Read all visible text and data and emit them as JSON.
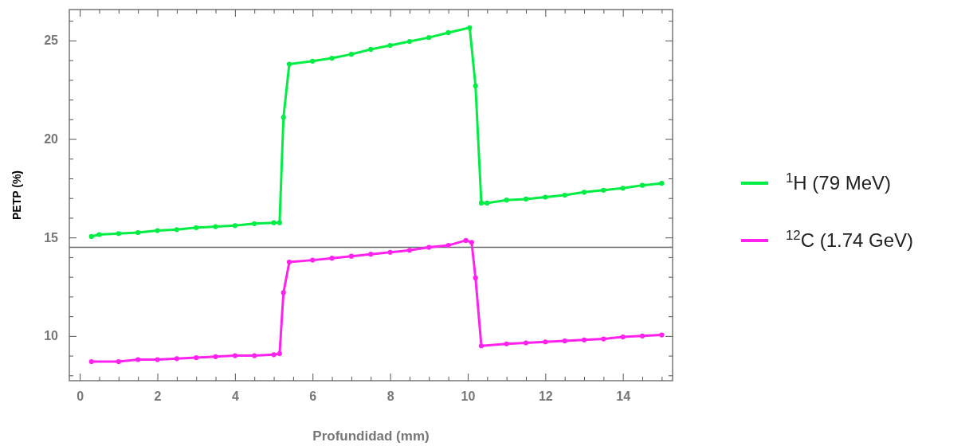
{
  "chart_data": {
    "type": "line",
    "xlabel": "Profundidad (mm)",
    "ylabel": "PETP (%)",
    "xlim": [
      -0.27,
      15.28
    ],
    "ylim": [
      7.73,
      26.57
    ],
    "xticks": [
      0,
      {
        "value": 0.5,
        "label": null
      },
      {
        "value": 1,
        "label": null
      },
      {
        "value": 1.5,
        "label": null
      },
      2,
      {
        "value": 2.5,
        "label": null
      },
      {
        "value": 3,
        "label": null
      },
      {
        "value": 3.5,
        "label": null
      },
      4,
      {
        "value": 4.5,
        "label": null
      },
      {
        "value": 5,
        "label": null
      },
      {
        "value": 5.5,
        "label": null
      },
      6,
      {
        "value": 6.5,
        "label": null
      },
      {
        "value": 7,
        "label": null
      },
      {
        "value": 7.5,
        "label": null
      },
      8,
      {
        "value": 8.5,
        "label": null
      },
      {
        "value": 9,
        "label": null
      },
      {
        "value": 9.5,
        "label": null
      },
      10,
      {
        "value": 10.5,
        "label": null
      },
      {
        "value": 11,
        "label": null
      },
      {
        "value": 11.5,
        "label": null
      },
      12,
      {
        "value": 12.5,
        "label": null
      },
      {
        "value": 13,
        "label": null
      },
      {
        "value": 13.5,
        "label": null
      },
      14,
      {
        "value": 14.5,
        "label": null
      },
      {
        "value": 15,
        "label": null
      }
    ],
    "yticks": [
      {
        "value": 8,
        "label": null
      },
      {
        "value": 9,
        "label": null
      },
      10,
      {
        "value": 11,
        "label": null
      },
      {
        "value": 12,
        "label": null
      },
      {
        "value": 13,
        "label": null
      },
      {
        "value": 14,
        "label": null
      },
      15,
      {
        "value": 16,
        "label": null
      },
      {
        "value": 17,
        "label": null
      },
      {
        "value": 18,
        "label": null
      },
      {
        "value": 19,
        "label": null
      },
      20,
      {
        "value": 21,
        "label": null
      },
      {
        "value": 22,
        "label": null
      },
      {
        "value": 23,
        "label": null
      },
      {
        "value": 24,
        "label": null
      },
      25,
      {
        "value": 26,
        "label": null
      }
    ],
    "grid": false,
    "legend": "right",
    "marker": "circle",
    "line_style": "solid",
    "ref_lines": [
      {
        "axis": "y",
        "value": 14.5,
        "color": "#666666"
      }
    ],
    "series": [
      {
        "name": "$^{1}$H (79 MeV)",
        "color": "#00ee44",
        "x": [
          0.3,
          0.5,
          1.0,
          1.5,
          2.0,
          2.5,
          3.0,
          3.5,
          4.0,
          4.5,
          5.0,
          5.15,
          5.25,
          5.4,
          6.0,
          6.5,
          7.0,
          7.5,
          8.0,
          8.5,
          9.0,
          9.5,
          10.05,
          10.2,
          10.35,
          10.5,
          11.0,
          11.5,
          12.0,
          12.5,
          13.0,
          13.5,
          14.0,
          14.5,
          15.0
        ],
        "values": [
          15.05,
          15.15,
          15.2,
          15.25,
          15.35,
          15.4,
          15.5,
          15.55,
          15.6,
          15.7,
          15.75,
          15.75,
          21.1,
          23.8,
          23.95,
          24.1,
          24.3,
          24.55,
          24.75,
          24.95,
          25.15,
          25.4,
          25.65,
          22.7,
          16.75,
          16.75,
          16.9,
          16.95,
          17.05,
          17.15,
          17.3,
          17.4,
          17.5,
          17.65,
          17.75
        ]
      },
      {
        "name": "$^{12}$C (1.74 GeV)",
        "color": "#ff22ee",
        "x": [
          0.3,
          1.0,
          1.5,
          2.0,
          2.5,
          3.0,
          3.5,
          4.0,
          4.5,
          5.0,
          5.15,
          5.25,
          5.4,
          6.0,
          6.5,
          7.0,
          7.5,
          8.0,
          8.5,
          9.0,
          9.5,
          9.95,
          10.1,
          10.2,
          10.35,
          11.0,
          11.5,
          12.0,
          12.5,
          13.0,
          13.5,
          14.0,
          14.5,
          15.0
        ],
        "values": [
          8.7,
          8.7,
          8.8,
          8.8,
          8.85,
          8.9,
          8.95,
          9.0,
          9.0,
          9.05,
          9.1,
          12.2,
          13.75,
          13.85,
          13.95,
          14.05,
          14.15,
          14.25,
          14.35,
          14.5,
          14.6,
          14.85,
          14.75,
          12.95,
          9.5,
          9.6,
          9.65,
          9.7,
          9.75,
          9.8,
          9.85,
          9.95,
          10.0,
          10.05
        ]
      }
    ]
  }
}
